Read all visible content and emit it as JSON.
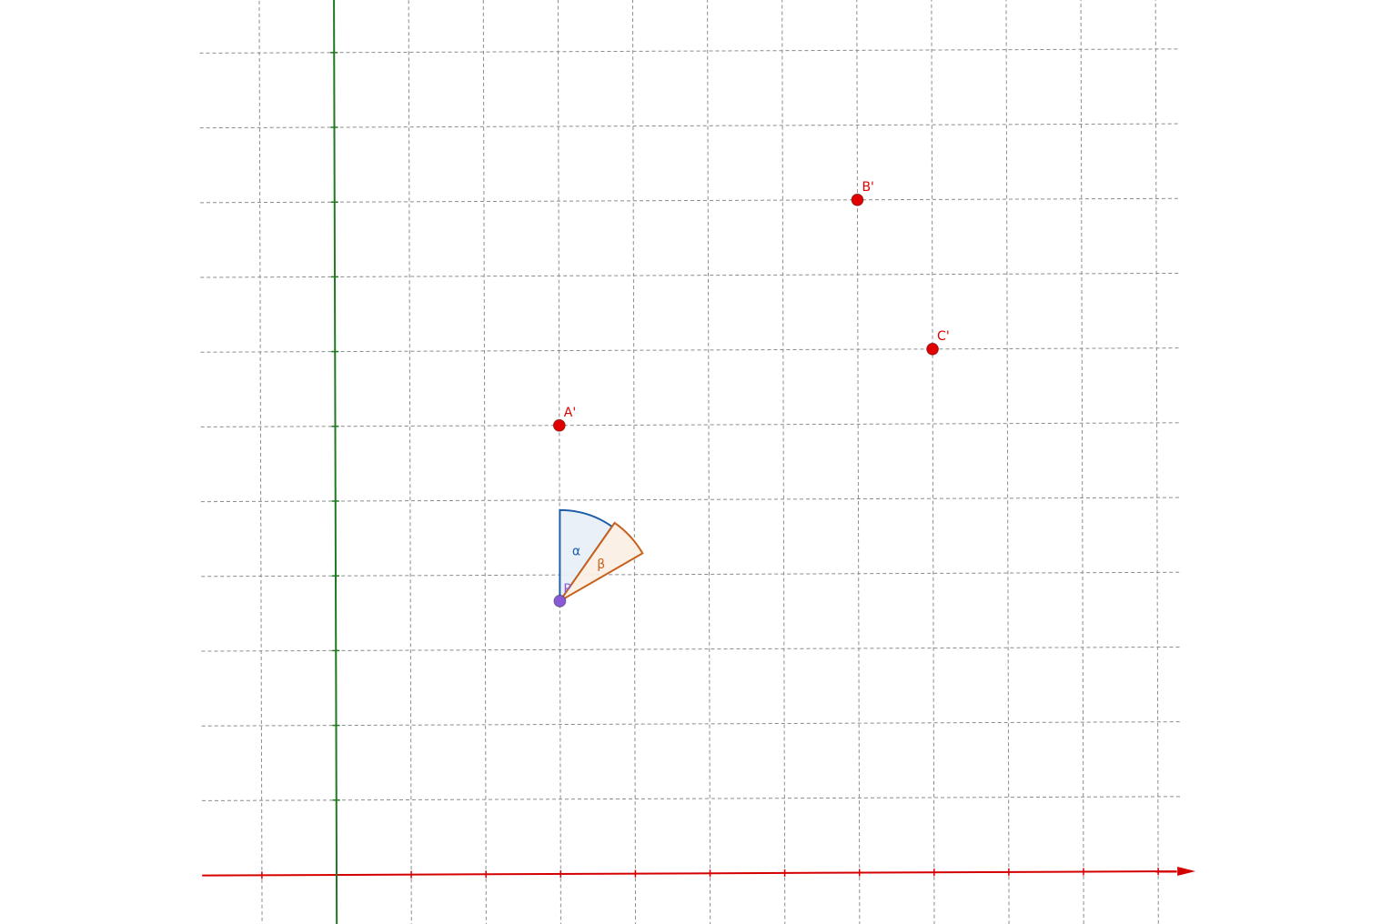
{
  "colors": {
    "background": "#ffffff",
    "grid": "#8c8c8c",
    "x_axis": "#d40000",
    "y_axis": "#1f7a1f",
    "point_red": "#e00000",
    "point_purple": "#8a5ad6",
    "angle_alpha": "#1f5fa8",
    "angle_alpha_fill": "#e7eef7",
    "angle_beta": "#c8611b",
    "angle_beta_fill": "#fbeee3"
  },
  "axes": {
    "x_range": [
      -1,
      11
    ],
    "y_range": [
      -1,
      11
    ],
    "x_ticks": [
      -1,
      0,
      1,
      2,
      3,
      4,
      5,
      6,
      7,
      8,
      9,
      10,
      11
    ],
    "y_ticks": [
      -1,
      0,
      1,
      2,
      3,
      4,
      5,
      6,
      7,
      8,
      9,
      10,
      11
    ],
    "grid": true,
    "tick_labels_shown": false
  },
  "points": [
    {
      "id": "A'",
      "label": "A'",
      "x": 3,
      "y": 6,
      "color": "point_red"
    },
    {
      "id": "B'",
      "label": "B'",
      "x": 7,
      "y": 9,
      "color": "point_red"
    },
    {
      "id": "C'",
      "label": "C'",
      "x": 8,
      "y": 7,
      "color": "point_red"
    },
    {
      "id": "P",
      "label": "P",
      "x": 3,
      "y": 3.65,
      "color": "point_purple"
    }
  ],
  "angles": [
    {
      "label": "α",
      "vertex": "P",
      "from_deg": 90,
      "to_deg": 55,
      "color": "angle_alpha",
      "fill": "angle_alpha_fill"
    },
    {
      "label": "β",
      "vertex": "P",
      "from_deg": 55,
      "to_deg": 30,
      "color": "angle_beta",
      "fill": "angle_beta_fill"
    }
  ]
}
